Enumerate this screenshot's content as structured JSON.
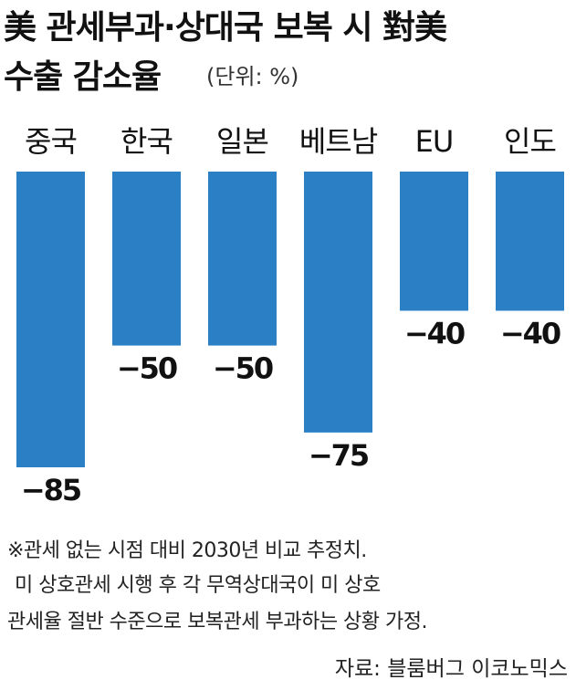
{
  "chart_data": {
    "type": "bar",
    "title": [
      "美 관세부과·상대국 보복 시 對美",
      "수출 감소율"
    ],
    "unit": "(단위: %)",
    "categories": [
      "중국",
      "한국",
      "일본",
      "베트남",
      "EU",
      "인도"
    ],
    "values": [
      -85,
      -50,
      -50,
      -75,
      -40,
      -40
    ],
    "value_labels": [
      "−85",
      "−50",
      "−50",
      "−75",
      "−40",
      "−40"
    ],
    "color": "#2b80c5",
    "notes": [
      "※관세 없는 시점 대비 2030년 비교 추정치.",
      "미 상호관세 시행 후 각 무역상대국이 미 상호",
      "관세율 절반 수준으로 보복관세 부과하는 상황 가정."
    ],
    "source": "자료: 블룸버그 이코노믹스"
  }
}
